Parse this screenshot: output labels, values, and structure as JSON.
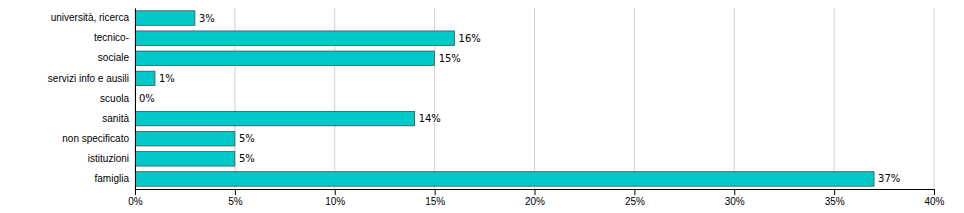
{
  "chart_data": {
    "type": "bar",
    "orientation": "horizontal",
    "categories": [
      "famiglia",
      "istituzioni",
      "non specificato",
      "sanità",
      "scuola",
      "servizi info e ausili",
      "sociale",
      "tecnico-",
      "università, ricerca"
    ],
    "values": [
      37,
      5,
      5,
      14,
      0,
      1,
      15,
      16,
      3
    ],
    "value_labels": [
      "37%",
      "5%",
      "5%",
      "14%",
      "0%",
      "1%",
      "15%",
      "16%",
      "3%"
    ],
    "data_labels": true,
    "color": "#00C8C8",
    "xlim": [
      0,
      40
    ],
    "xticks": [
      {
        "value": 0,
        "label": "0%"
      },
      {
        "value": 5,
        "label": "5%"
      },
      {
        "value": 10,
        "label": "10%"
      },
      {
        "value": 15,
        "label": "15%"
      },
      {
        "value": 20,
        "label": "20%"
      },
      {
        "value": 25,
        "label": "25%"
      },
      {
        "value": 30,
        "label": "30%"
      },
      {
        "value": 35,
        "label": "35%"
      },
      {
        "value": 40,
        "label": "40%"
      }
    ],
    "grid": true
  }
}
